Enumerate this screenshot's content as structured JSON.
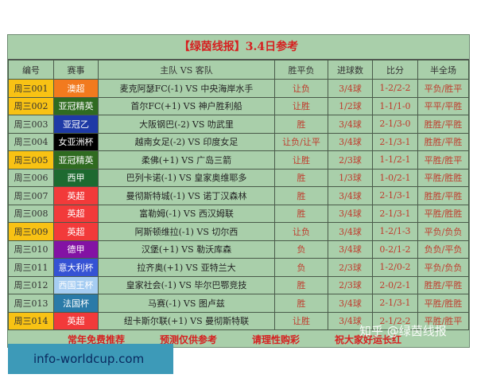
{
  "title": "【绿茵线报】3.4日参考",
  "headers": [
    "编号",
    "赛事",
    "主队 VS 客队",
    "胜平负",
    "进球数",
    "比分",
    "半全场"
  ],
  "rows": [
    [
      "周三001",
      "澳超",
      "麦克阿瑟FC(-1) VS 中央海岸水手",
      "让负",
      "3/4球",
      "1-2/2-2",
      "平负/胜平",
      "#f8c214",
      "#f27a1e"
    ],
    [
      "周三002",
      "亚冠精英",
      "首尔FC(+1) VS 神户胜利船",
      "让胜",
      "1/2球",
      "1-1/1-0",
      "平平/平胜",
      "#f8c214",
      "#2f6b20"
    ],
    [
      "周三003",
      "亚冠乙",
      "大阪钢巴(-2) VS 叻武里",
      "胜",
      "3/4球",
      "2-1/3-0",
      "胜胜/平胜",
      "",
      "#1e3aa6"
    ],
    [
      "周三004",
      "女亚洲杯",
      "越南女足(-2) VS 印度女足",
      "让负/让平",
      "3/4球",
      "2-1/3-1",
      "胜胜/平胜",
      "",
      "#000000"
    ],
    [
      "周三005",
      "亚冠精英",
      "柔佛(+1) VS 广岛三箭",
      "让胜",
      "2/3球",
      "1-1/2-1",
      "平胜/胜平",
      "#f8c214",
      "#2f6b20"
    ],
    [
      "周三006",
      "西甲",
      "巴列卡诺(-1) VS 皇家奥维耶多",
      "胜",
      "1/3球",
      "1-0/2-1",
      "平胜/胜胜",
      "",
      "#1d6a30"
    ],
    [
      "周三007",
      "英超",
      "曼彻斯特城(-1) VS 诺丁汉森林",
      "胜",
      "3/4球",
      "2-1/3-1",
      "胜胜/平胜",
      "",
      "#f23a3a"
    ],
    [
      "周三008",
      "英超",
      "富勒姆(-1) VS 西汉姆联",
      "胜",
      "3/4球",
      "2-1/3-1",
      "平胜/胜胜",
      "",
      "#f23a3a"
    ],
    [
      "周三009",
      "英超",
      "阿斯顿维拉(-1) VS 切尔西",
      "让负",
      "3/4球",
      "1-2/1-3",
      "平负/负负",
      "#f8c214",
      "#f23a3a"
    ],
    [
      "周三010",
      "德甲",
      "汉堡(+1) VS 勒沃库森",
      "负",
      "3/4球",
      "0-2/1-2",
      "负负/平负",
      "",
      "#8312a4"
    ],
    [
      "周三011",
      "意大利杯",
      "拉齐奥(+1) VS 亚特兰大",
      "负",
      "2/3球",
      "1-2/0-2",
      "平负/负负",
      "",
      "#3552d4"
    ],
    [
      "周三012",
      "西国王杯",
      "皇家社会(-1) VS 毕尔巴鄂竞技",
      "胜",
      "2/3球",
      "2-0/2-1",
      "胜胜/平胜",
      "",
      "#a6cdf2"
    ],
    [
      "周三013",
      "法国杯",
      "马赛(-1) VS 图卢兹",
      "胜",
      "3/4球",
      "2-1/3-1",
      "平胜/胜胜",
      "",
      "#2a7aa8"
    ],
    [
      "周三014",
      "英超",
      "纽卡斯尔联(+1) VS 曼彻斯特联",
      "让胜",
      "3/4球",
      "2-1/2-2",
      "平胜/胜平",
      "#f8c214",
      "#f23a3a"
    ]
  ],
  "footer": [
    "常年免费推荐",
    "预测仅供参考",
    "请理性购彩",
    "祝大家好运长红"
  ],
  "watermark": "info-worldcup.com",
  "zhihu": "知乎 @绿茵线报"
}
